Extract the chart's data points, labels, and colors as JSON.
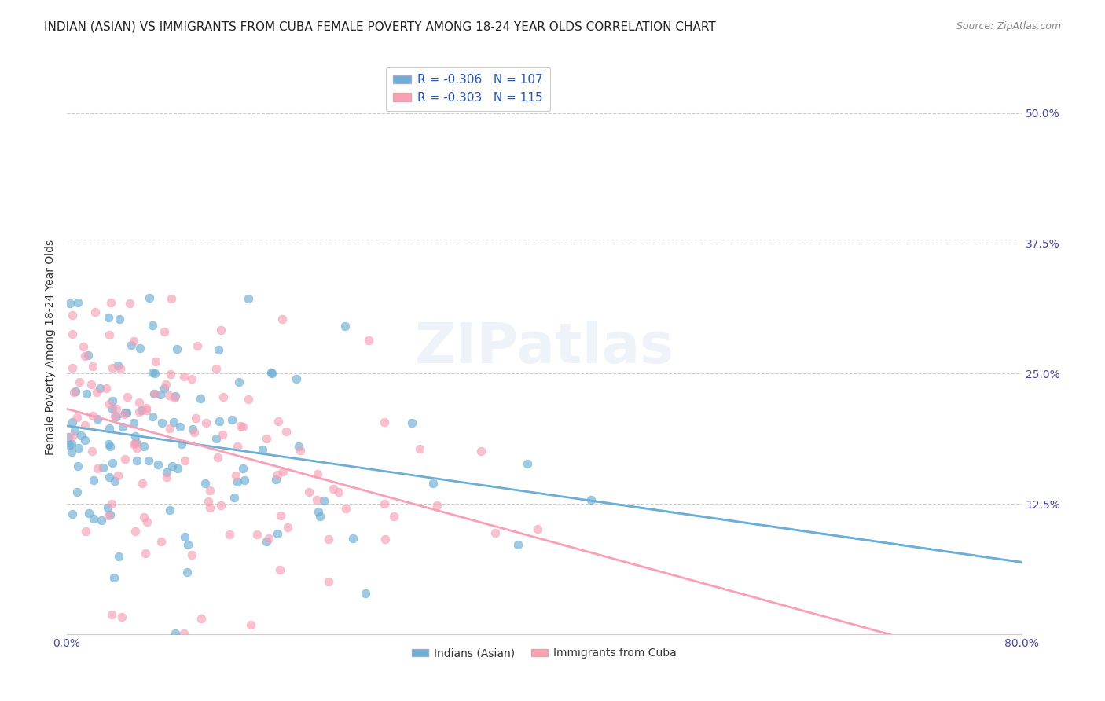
{
  "title": "INDIAN (ASIAN) VS IMMIGRANTS FROM CUBA FEMALE POVERTY AMONG 18-24 YEAR OLDS CORRELATION CHART",
  "source": "Source: ZipAtlas.com",
  "ylabel": "Female Poverty Among 18-24 Year Olds",
  "xlabel_ticks": [
    "0.0%",
    "80.0%"
  ],
  "ytick_labels": [
    "50.0%",
    "37.5%",
    "25.0%",
    "12.5%"
  ],
  "ytick_values": [
    0.5,
    0.375,
    0.25,
    0.125
  ],
  "xlim": [
    0.0,
    0.8
  ],
  "ylim": [
    0.0,
    0.55
  ],
  "legend_entries": [
    {
      "label": "R = -0.306   N = 107",
      "color": "#6baed6"
    },
    {
      "label": "R = -0.303   N = 115",
      "color": "#fa9fb5"
    }
  ],
  "series1_color": "#6baed6",
  "series2_color": "#fa9fb5",
  "series1_R": -0.306,
  "series1_N": 107,
  "series2_R": -0.303,
  "series2_N": 115,
  "watermark": "ZIPatlas",
  "legend_label1": "Indians (Asian)",
  "legend_label2": "Immigrants from Cuba",
  "title_fontsize": 11,
  "source_fontsize": 9,
  "ylabel_fontsize": 10,
  "tick_fontsize": 10
}
